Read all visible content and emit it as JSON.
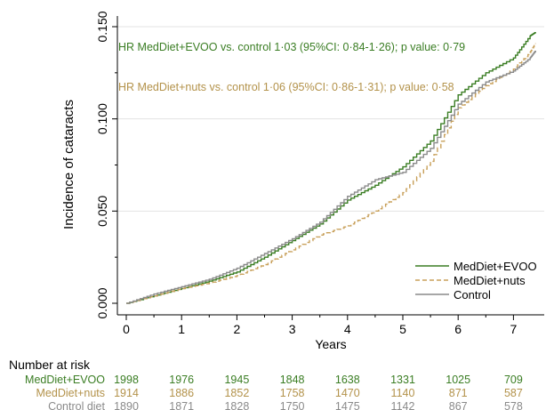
{
  "chart_data": {
    "type": "line",
    "ylabel": "Incidence of cataracts",
    "xlabel": "Years",
    "xlim": [
      0,
      7.5
    ],
    "ylim": [
      0,
      0.15
    ],
    "x_ticks": [
      "0",
      "1",
      "2",
      "3",
      "4",
      "5",
      "6",
      "7"
    ],
    "y_ticks": [
      "0.000",
      "0.050",
      "0.100",
      "0.150"
    ],
    "grid": "horizontal",
    "legend_position": "bottom-right",
    "annotations": [
      {
        "text": "HR MedDiet+EVOO vs. control 1·03 (95%CI: 0·84-1·26); p value: 0·79",
        "color": "#3a7d23"
      },
      {
        "text": "HR MedDiet+nuts vs. control 1·06 (95%CI: 0·86-1·31); p value: 0·58",
        "color": "#b3924a"
      }
    ],
    "series": [
      {
        "name": "MedDiet+EVOO",
        "color": "#3a7d23",
        "dash": "solid",
        "x": [
          0,
          0.5,
          1,
          1.5,
          2,
          2.5,
          3,
          3.5,
          4,
          4.5,
          5,
          5.5,
          6,
          6.5,
          7,
          7.3,
          7.4
        ],
        "y": [
          0,
          0.004,
          0.008,
          0.012,
          0.017,
          0.025,
          0.034,
          0.043,
          0.056,
          0.064,
          0.074,
          0.088,
          0.113,
          0.125,
          0.133,
          0.145,
          0.147
        ]
      },
      {
        "name": "MedDiet+nuts",
        "color": "#c8a05a",
        "dash": "dashed",
        "x": [
          0,
          0.5,
          1,
          1.5,
          2,
          2.5,
          3,
          3.5,
          4,
          4.5,
          5,
          5.5,
          6,
          6.5,
          7,
          7.3,
          7.4
        ],
        "y": [
          0,
          0.004,
          0.008,
          0.011,
          0.015,
          0.021,
          0.029,
          0.037,
          0.042,
          0.05,
          0.06,
          0.077,
          0.106,
          0.118,
          0.127,
          0.136,
          0.141
        ]
      },
      {
        "name": "Control",
        "color": "#8a8a8a",
        "dash": "solid",
        "x": [
          0,
          0.5,
          1,
          1.5,
          2,
          2.5,
          3,
          3.5,
          4,
          4.5,
          5,
          5.5,
          6,
          6.5,
          7,
          7.3,
          7.4
        ],
        "y": [
          0,
          0.005,
          0.009,
          0.013,
          0.019,
          0.027,
          0.035,
          0.044,
          0.058,
          0.067,
          0.071,
          0.084,
          0.108,
          0.12,
          0.126,
          0.133,
          0.137
        ]
      }
    ],
    "risk_table": {
      "title": "Number at risk",
      "rows": [
        {
          "label": "MedDiet+EVOO",
          "color": "#3a7d23",
          "values": [
            "1998",
            "1976",
            "1945",
            "1848",
            "1638",
            "1331",
            "1025",
            "709"
          ]
        },
        {
          "label": "MedDiet+nuts",
          "color": "#b3924a",
          "values": [
            "1914",
            "1886",
            "1852",
            "1758",
            "1470",
            "1140",
            "871",
            "587"
          ]
        },
        {
          "label": "Control diet",
          "color": "#8a8a8a",
          "values": [
            "1890",
            "1871",
            "1828",
            "1750",
            "1475",
            "1142",
            "867",
            "578"
          ]
        }
      ]
    }
  }
}
